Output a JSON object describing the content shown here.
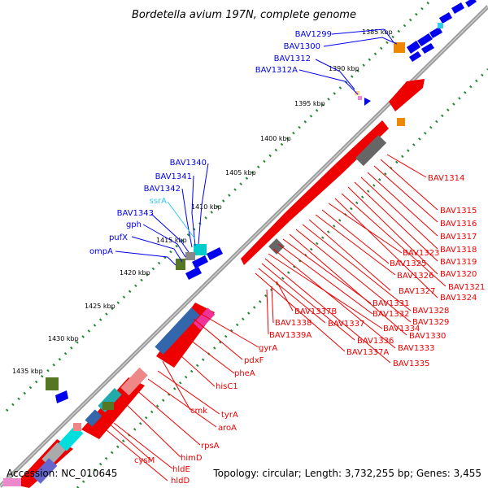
{
  "title": "Bordetella avium 197N, complete genome",
  "footer": {
    "accession": "Accession: NC_010645",
    "summary": "Topology: circular; Length: 3,732,255 bp; Genes: 3,455"
  },
  "colors": {
    "forward": "#0000ee",
    "reverse": "#ee0000",
    "rna": "#33ccee",
    "backbone": "#9a9a9a",
    "tick": "#228833"
  },
  "kbp_ticks": [
    "1385 kbp",
    "1390 kbp",
    "1395 kbp",
    "1400 kbp",
    "1405 kbp",
    "1410 kbp",
    "1415 kbp",
    "1420 kbp",
    "1425 kbp",
    "1430 kbp",
    "1435 kbp"
  ],
  "labels_top_left": [
    "BAV1299",
    "BAV1300",
    "BAV1312",
    "BAV1312A",
    "BAV1340",
    "BAV1341",
    "BAV1342",
    "ssrA",
    "BAV1343",
    "gph",
    "pufX",
    "ompA"
  ],
  "labels_right": [
    "BAV1314",
    "BAV1315",
    "BAV1316",
    "BAV1317",
    "BAV1318",
    "BAV1319",
    "BAV1320",
    "BAV1321",
    "BAV1323",
    "BAV1324",
    "BAV1325",
    "BAV1326",
    "BAV1327",
    "BAV1328",
    "BAV1329",
    "BAV1330",
    "BAV1331",
    "BAV1332",
    "BAV1333",
    "BAV1334",
    "BAV1335",
    "BAV1336",
    "BAV1337",
    "BAV1337A",
    "BAV1337B",
    "BAV1338",
    "BAV1339A",
    "gyrA",
    "pdxF",
    "pheA",
    "hisC1",
    "cmk",
    "tyrA",
    "aroA",
    "rpsA",
    "himD",
    "cysM",
    "hldE",
    "hldD"
  ]
}
